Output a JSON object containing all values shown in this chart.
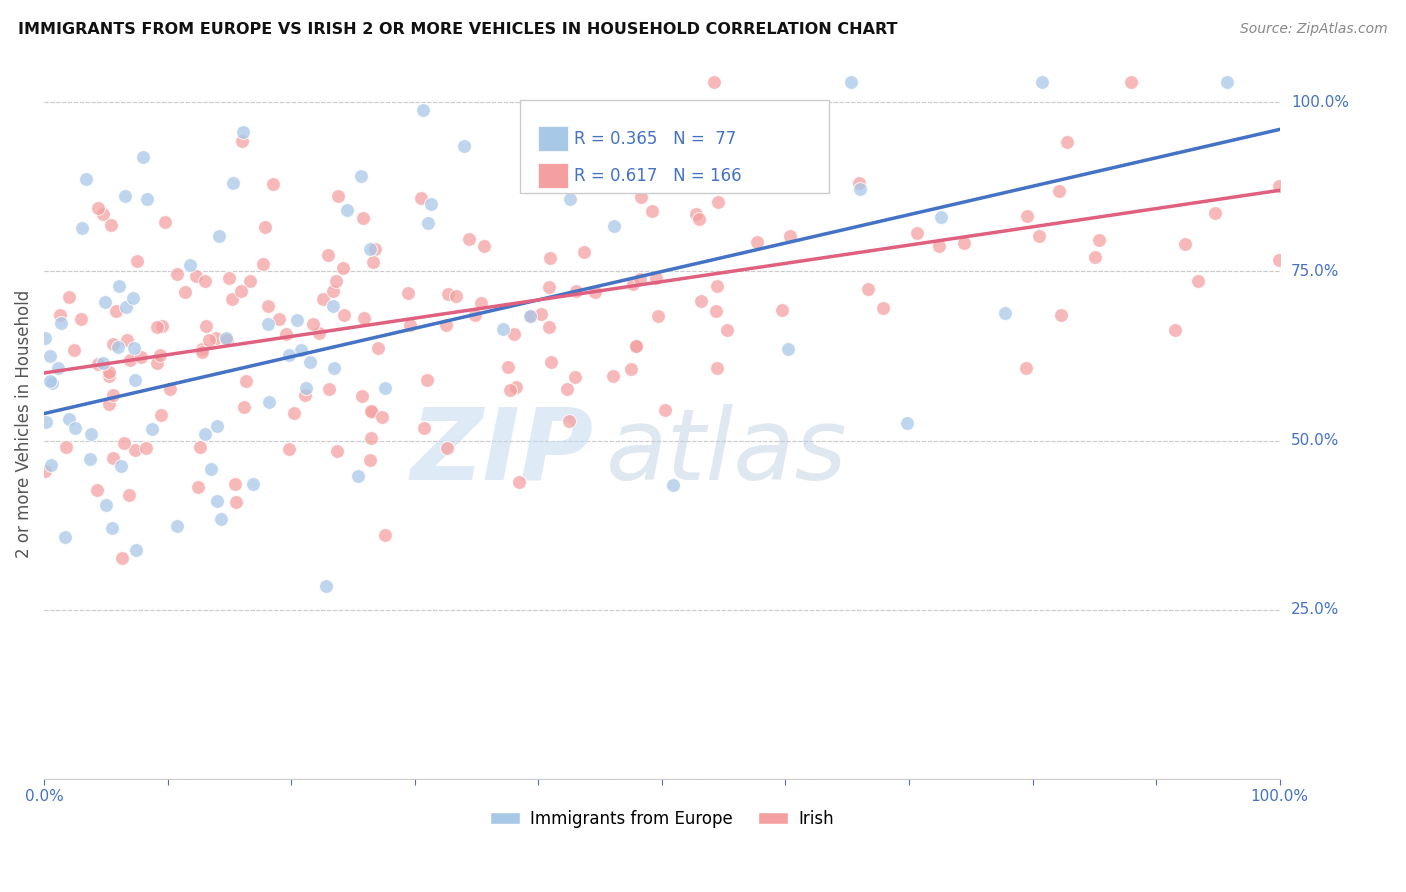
{
  "title": "IMMIGRANTS FROM EUROPE VS IRISH 2 OR MORE VEHICLES IN HOUSEHOLD CORRELATION CHART",
  "source": "Source: ZipAtlas.com",
  "ylabel": "2 or more Vehicles in Household",
  "blue_R": 0.365,
  "blue_N": 77,
  "pink_R": 0.617,
  "pink_N": 166,
  "blue_color": "#a8c8e8",
  "pink_color": "#f4a0a0",
  "blue_line_color": "#4472c4",
  "pink_line_color": "#e06080",
  "right_tick_color": "#4472c4",
  "legend_label_blue": "Immigrants from Europe",
  "legend_label_pink": "Irish",
  "blue_line_x0": 0.0,
  "blue_line_y0": 0.54,
  "blue_line_x1": 1.0,
  "blue_line_y1": 0.96,
  "pink_line_x0": 0.0,
  "pink_line_y0": 0.6,
  "pink_line_x1": 1.0,
  "pink_line_y1": 0.87,
  "ylim_min": 0.0,
  "ylim_max": 1.05,
  "xlim_min": 0.0,
  "xlim_max": 1.0,
  "y_ticks": [
    0.0,
    0.25,
    0.5,
    0.75,
    1.0
  ],
  "y_tick_labels": [
    "",
    "25.0%",
    "50.0%",
    "75.0%",
    "100.0%"
  ],
  "x_ticks": [
    0.0,
    0.1,
    0.2,
    0.3,
    0.4,
    0.5,
    0.6,
    0.7,
    0.8,
    0.9,
    1.0
  ],
  "x_tick_labels": [
    "0.0%",
    "",
    "",
    "",
    "",
    "",
    "",
    "",
    "",
    "",
    "100.0%"
  ],
  "watermark_zip": "ZIP",
  "watermark_atlas": "atlas",
  "watermark_color": "#c8ddf0",
  "watermark_atlas_color": "#b8cce0"
}
